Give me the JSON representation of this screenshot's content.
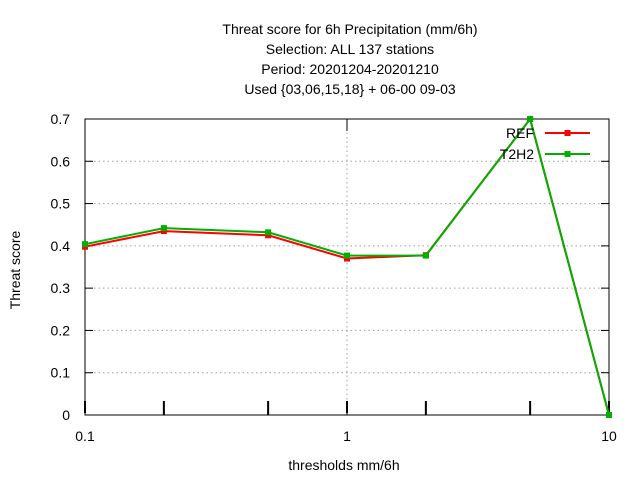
{
  "chart_data": {
    "type": "line",
    "title_lines": [
      "Threat score  for 6h Precipitation (mm/6h)",
      "Selection: ALL    137 stations",
      "Period: 20201204-20201210",
      "Used {03,06,15,18} + 06-00 09-03"
    ],
    "xlabel": "thresholds mm/6h",
    "ylabel": "Threat score",
    "x_scale": "log",
    "xlim": [
      0.1,
      10
    ],
    "ylim": [
      0,
      0.7
    ],
    "x_ticks": [
      {
        "value": 0.1,
        "label": "0.1"
      },
      {
        "value": 1,
        "label": "1"
      },
      {
        "value": 10,
        "label": "10"
      }
    ],
    "y_ticks": [
      {
        "value": 0,
        "label": "0"
      },
      {
        "value": 0.1,
        "label": "0.1"
      },
      {
        "value": 0.2,
        "label": "0.2"
      },
      {
        "value": 0.3,
        "label": "0.3"
      },
      {
        "value": 0.4,
        "label": "0.4"
      },
      {
        "value": 0.5,
        "label": "0.5"
      },
      {
        "value": 0.6,
        "label": "0.6"
      },
      {
        "value": 0.7,
        "label": "0.7"
      }
    ],
    "grid": true,
    "legend_position": "top-right",
    "x": [
      0.1,
      0.2,
      0.5,
      1,
      2,
      5,
      10
    ],
    "series": [
      {
        "name": "REF",
        "color": "#ff0000",
        "values": [
          0.398,
          0.435,
          0.425,
          0.37,
          0.378,
          0.7,
          0.0
        ]
      },
      {
        "name": "T2H2",
        "color": "#00b000",
        "values": [
          0.404,
          0.442,
          0.432,
          0.377,
          0.377,
          0.7,
          0.0
        ]
      }
    ]
  }
}
